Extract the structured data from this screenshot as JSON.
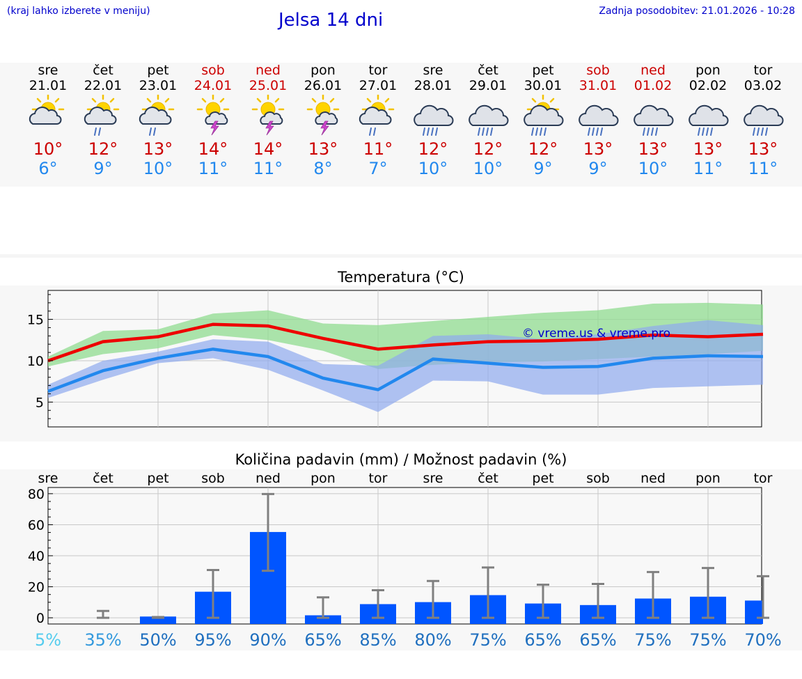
{
  "header": {
    "hint": "(kraj lahko izberete v meniju)",
    "title": "Jelsa 14 dni",
    "updated": "Zadnja posodobitev: 21.01.2026 - 10:28"
  },
  "days": [
    {
      "name": "sre",
      "date": "21.01",
      "max": "10°",
      "min": "6°",
      "icon": "sun-cloud-icon",
      "weekend": false
    },
    {
      "name": "čet",
      "date": "22.01",
      "max": "12°",
      "min": "9°",
      "icon": "sun-cloud-rain-icon",
      "weekend": false
    },
    {
      "name": "pet",
      "date": "23.01",
      "max": "13°",
      "min": "10°",
      "icon": "sun-cloud-rain-icon",
      "weekend": false
    },
    {
      "name": "sob",
      "date": "24.01",
      "max": "14°",
      "min": "11°",
      "icon": "sun-thunder-icon",
      "weekend": true
    },
    {
      "name": "ned",
      "date": "25.01",
      "max": "14°",
      "min": "11°",
      "icon": "sun-thunder-icon",
      "weekend": true
    },
    {
      "name": "pon",
      "date": "26.01",
      "max": "13°",
      "min": "8°",
      "icon": "sun-thunder-icon",
      "weekend": false
    },
    {
      "name": "tor",
      "date": "27.01",
      "max": "11°",
      "min": "7°",
      "icon": "sun-cloud-rain-icon",
      "weekend": false
    },
    {
      "name": "sre",
      "date": "28.01",
      "max": "12°",
      "min": "10°",
      "icon": "cloud-rain-icon",
      "weekend": false
    },
    {
      "name": "čet",
      "date": "29.01",
      "max": "12°",
      "min": "10°",
      "icon": "cloud-rain-icon",
      "weekend": false
    },
    {
      "name": "pet",
      "date": "30.01",
      "max": "12°",
      "min": "9°",
      "icon": "sun-cloud-heavy-rain-icon",
      "weekend": false
    },
    {
      "name": "sob",
      "date": "31.01",
      "max": "13°",
      "min": "9°",
      "icon": "cloud-rain-icon",
      "weekend": true
    },
    {
      "name": "ned",
      "date": "01.02",
      "max": "13°",
      "min": "10°",
      "icon": "cloud-rain-icon",
      "weekend": true
    },
    {
      "name": "pon",
      "date": "02.02",
      "max": "13°",
      "min": "11°",
      "icon": "cloud-rain-icon",
      "weekend": false
    },
    {
      "name": "tor",
      "date": "03.02",
      "max": "13°",
      "min": "11°",
      "icon": "cloud-rain-icon",
      "weekend": false
    }
  ],
  "temp_chart": {
    "title": "Temperatura (°C)",
    "watermark": "© vreme.us & vreme.pro",
    "colors": {
      "max": "#ee0000",
      "min": "#2288ee",
      "max_band": "#90dc90",
      "min_band": "#8faaee"
    }
  },
  "precip_chart": {
    "title": "Količina padavin (mm) / Možnost padavin (%)",
    "bar_color": "#0055ff",
    "err_color": "#808080",
    "prob_colors": [
      "#55ccee",
      "#3399dd",
      "#1f6fbf"
    ]
  },
  "chart_data": [
    {
      "type": "line",
      "title": "Temperatura (°C)",
      "categories": [
        "21.01",
        "22.01",
        "23.01",
        "24.01",
        "25.01",
        "26.01",
        "27.01",
        "28.01",
        "29.01",
        "30.01",
        "31.01",
        "01.02",
        "02.02",
        "03.02"
      ],
      "ylim": [
        2,
        18.5
      ],
      "yticks": [
        5,
        10,
        15
      ],
      "series": [
        {
          "name": "max",
          "values": [
            10,
            12.3,
            12.9,
            14.4,
            14.2,
            12.7,
            11.4,
            11.9,
            12.3,
            12.4,
            12.6,
            13.1,
            12.9,
            13.2
          ]
        },
        {
          "name": "min",
          "values": [
            6.3,
            8.8,
            10.3,
            11.4,
            10.5,
            7.9,
            6.5,
            10.2,
            9.7,
            9.2,
            9.3,
            10.3,
            10.6,
            10.5
          ]
        },
        {
          "name": "max_upper",
          "values": [
            10.5,
            13.6,
            13.8,
            15.7,
            16.1,
            14.5,
            14.3,
            14.8,
            15.3,
            15.8,
            16.1,
            16.9,
            17,
            16.8
          ]
        },
        {
          "name": "max_lower",
          "values": [
            9.3,
            10.8,
            11.5,
            13.1,
            12.5,
            11.2,
            9.0,
            9.5,
            9.8,
            9.9,
            10.2,
            10.5,
            10.8,
            11.2
          ]
        },
        {
          "name": "min_upper",
          "values": [
            7.1,
            10,
            11.1,
            12.6,
            12.3,
            9.6,
            9.4,
            13,
            13.2,
            12.6,
            13.2,
            14.2,
            14.9,
            14.3
          ]
        },
        {
          "name": "min_lower",
          "values": [
            5.5,
            7.7,
            9.7,
            10.3,
            8.9,
            6.4,
            3.8,
            7.6,
            7.5,
            5.9,
            5.9,
            6.7,
            6.9,
            7.1
          ]
        }
      ]
    },
    {
      "type": "bar",
      "title": "Količina padavin (mm) / Možnost padavin (%)",
      "categories": [
        "sre",
        "čet",
        "pet",
        "sob",
        "ned",
        "pon",
        "tor",
        "sre",
        "čet",
        "pet",
        "sob",
        "ned",
        "pon",
        "tor"
      ],
      "ylim": [
        -4,
        84
      ],
      "yticks": [
        0,
        20,
        40,
        60,
        80
      ],
      "values": [
        0,
        0,
        0.8,
        16.8,
        55.3,
        1.6,
        8.8,
        10.1,
        14.6,
        9.2,
        8.2,
        12.4,
        13.6,
        11.1
      ],
      "err_low": [
        0,
        0,
        0,
        0,
        30.3,
        0,
        0,
        0,
        0,
        0,
        0,
        0,
        0,
        0
      ],
      "err_high": [
        0,
        4.4,
        0.5,
        30.8,
        79.8,
        13.2,
        17.8,
        23.7,
        32.4,
        21.3,
        21.8,
        29.5,
        32.1,
        26.8
      ],
      "probabilities": [
        "5%",
        "35%",
        "50%",
        "95%",
        "90%",
        "65%",
        "85%",
        "80%",
        "75%",
        "65%",
        "65%",
        "75%",
        "75%",
        "70%"
      ]
    }
  ]
}
